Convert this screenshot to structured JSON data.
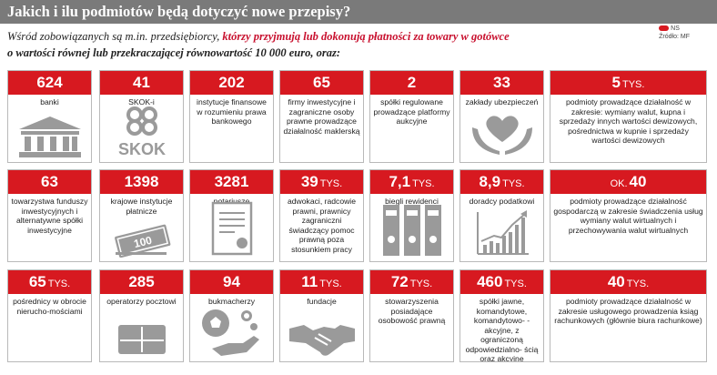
{
  "header": {
    "title": "Jakich i ilu podmiotów będą dotyczyć nowe przepisy?"
  },
  "source": {
    "brand": "NS",
    "source_label": "Źródło: MF"
  },
  "intro": {
    "part1": "Wśród zobowiązanych są m.in. przedsiębiorcy, ",
    "part2": "którzy przyjmują lub dokonują płatności za towary w gotówce",
    "part3": "o wartości równej lub przekraczającej równowartość 10 000 euro, oraz:"
  },
  "colors": {
    "accent": "#d71920",
    "header_bg": "#7a7a7a",
    "icon_gray": "#9a9a9a"
  },
  "cards": [
    {
      "count": "624",
      "unit": "",
      "label": "banki",
      "icon": "bank-icon"
    },
    {
      "count": "41",
      "unit": "",
      "label": "SKOK-i",
      "icon": "skok-logo-icon",
      "logo_text": "SKOK"
    },
    {
      "count": "202",
      "unit": "",
      "label": "instytucje finansowe w rozumieniu prawa bankowego",
      "icon": ""
    },
    {
      "count": "65",
      "unit": "",
      "label": "firmy inwestycyjne i zagraniczne osoby prawne prowadzące działalność maklerską",
      "icon": ""
    },
    {
      "count": "2",
      "unit": "",
      "label": "spółki regulowane prowadzące platformy aukcyjne",
      "icon": ""
    },
    {
      "count": "33",
      "unit": "",
      "label": "zakłady ubezpieczeń",
      "icon": "heart-hands-icon"
    },
    {
      "count": "5",
      "unit": "TYS.",
      "label": "podmioty prowadzące działalność w zakresie: wymiany walut, kupna i sprzedaży innych wartości dewizowych, pośrednictwa w kupnie i sprzedaży wartości dewizowych",
      "icon": ""
    },
    {
      "count": "63",
      "unit": "",
      "label": "towarzystwa funduszy inwestycyjnych i alternatywne spółki inwestycyjne",
      "icon": ""
    },
    {
      "count": "1398",
      "unit": "",
      "label": "krajowe instytucje płatnicze",
      "icon": "banknotes-icon"
    },
    {
      "count": "3281",
      "unit": "",
      "label": "notariusze",
      "icon": "certificate-icon"
    },
    {
      "count": "39",
      "unit": "TYS.",
      "label": "adwokaci, radcowie prawni, prawnicy zagraniczni świadczący pomoc prawną poza stosunkiem pracy",
      "icon": ""
    },
    {
      "count": "7,1",
      "unit": "TYS.",
      "label": "biegli rewidenci",
      "icon": "binders-icon"
    },
    {
      "count": "8,9",
      "unit": "TYS.",
      "label": "doradcy podatkowi",
      "icon": "growth-chart-icon"
    },
    {
      "count": "40",
      "unit": "",
      "prefix": "OK.",
      "label": "podmioty prowadzące działalność gospodarczą w zakresie świadczenia usług wymiany walut wirtualnych i przechowywania walut wirtualnych",
      "icon": ""
    },
    {
      "count": "65",
      "unit": "TYS.",
      "label": "pośrednicy w obrocie nierucho-mościami",
      "icon": ""
    },
    {
      "count": "285",
      "unit": "",
      "label": "operatorzy pocztowi",
      "icon": "envelope-icon"
    },
    {
      "count": "94",
      "unit": "",
      "label": "bukmacherzy",
      "icon": "soccer-ball-hand-icon"
    },
    {
      "count": "11",
      "unit": "TYS.",
      "label": "fundacje",
      "icon": "handshake-icon"
    },
    {
      "count": "72",
      "unit": "TYS.",
      "label": "stowarzyszenia posiadające osobowość prawną",
      "icon": ""
    },
    {
      "count": "460",
      "unit": "TYS.",
      "label": "spółki jawne, komandytowe, komandytowo- -akcyjne, z ograniczoną odpowiedzialno- ścią oraz akcyjne",
      "icon": ""
    },
    {
      "count": "40",
      "unit": "TYS.",
      "label": "podmioty prowadzące działalność w zakresie usługowego prowadzenia ksiąg rachunkowych (głównie biura rachunkowe)",
      "icon": ""
    }
  ]
}
